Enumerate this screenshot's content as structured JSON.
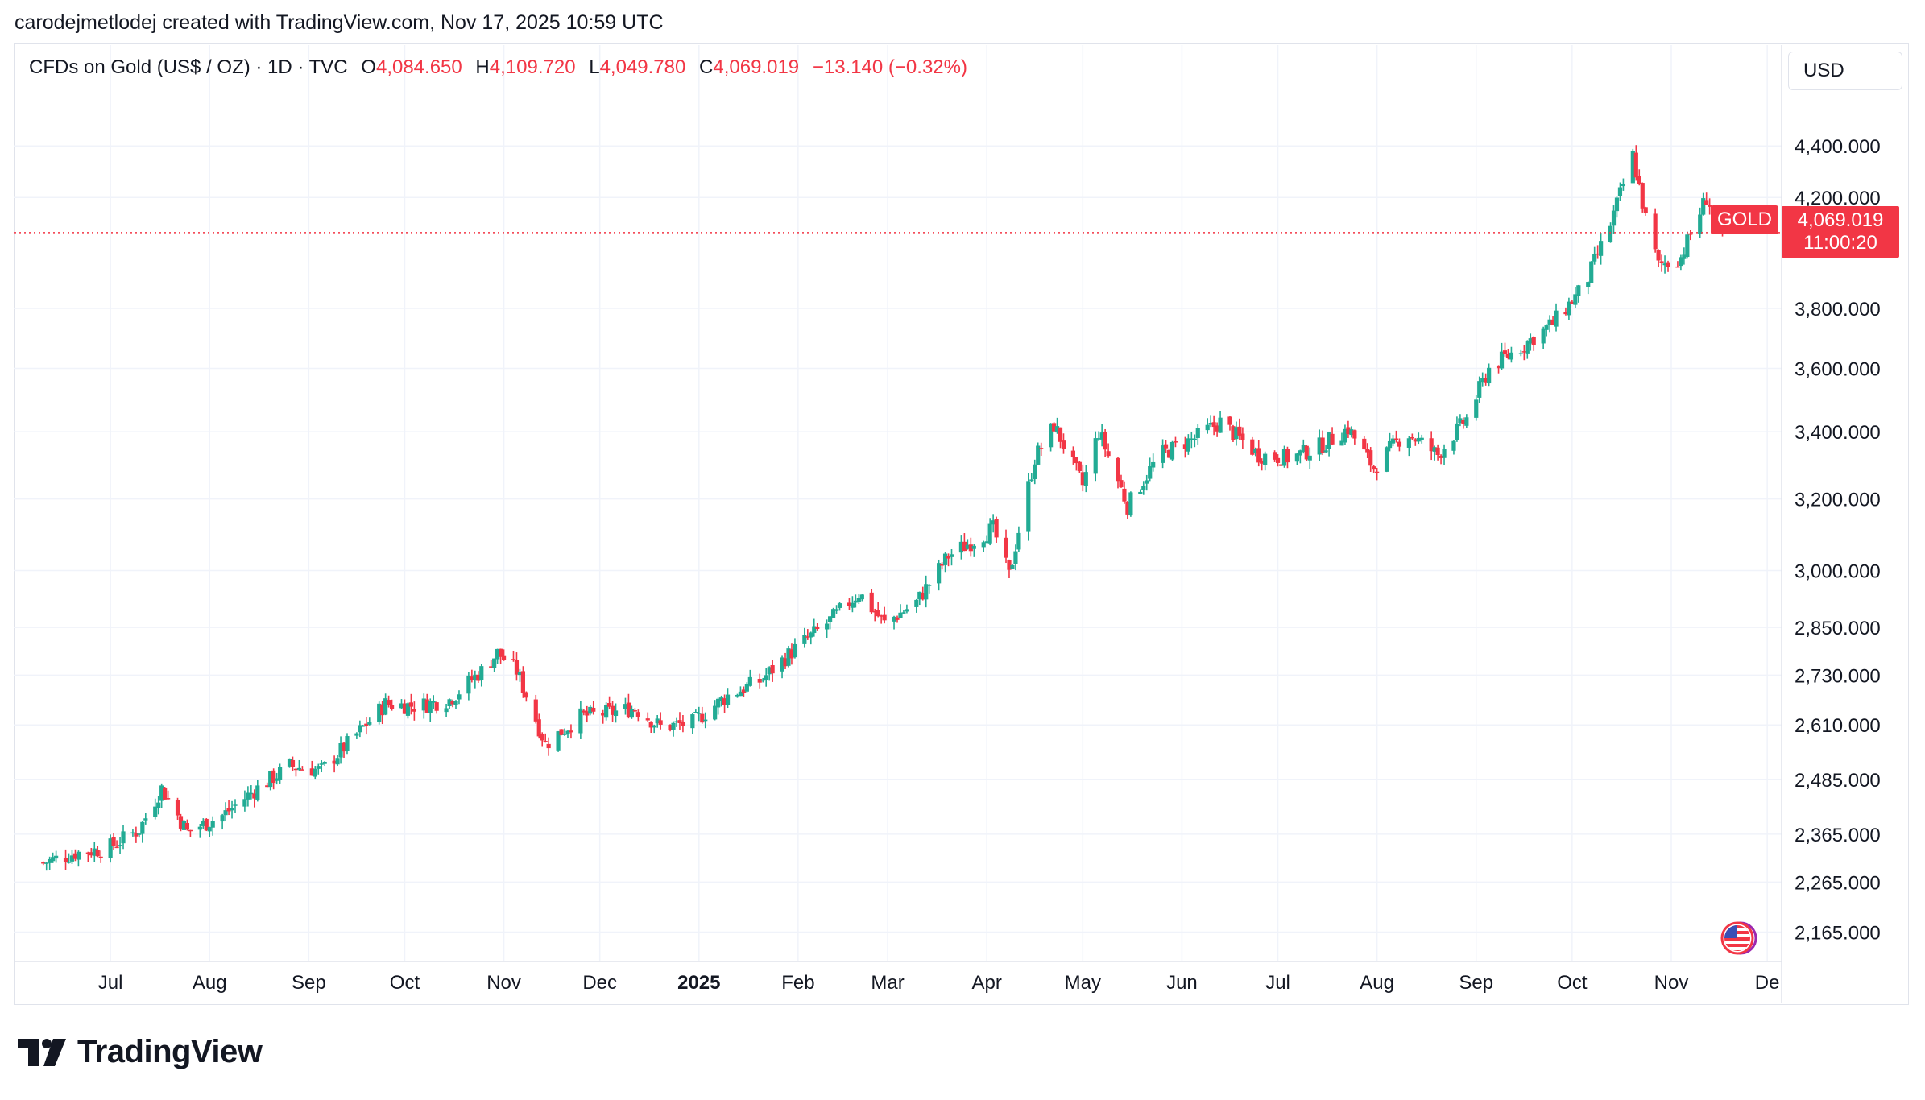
{
  "byline": "carodejmetlodej created with TradingView.com, Nov 17, 2025 10:59 UTC",
  "legend": {
    "symbol": "CFDs on Gold (US$ / OZ) · 1D · TVC",
    "open_label": "O",
    "open": "4,084.650",
    "high_label": "H",
    "high": "4,109.720",
    "low_label": "L",
    "low": "4,049.780",
    "close_label": "C",
    "close": "4,069.019",
    "change": "−13.140 (−0.32%)"
  },
  "currency": "USD",
  "price_tag": {
    "name": "GOLD",
    "price": "4,069.019",
    "countdown": "11:00:20"
  },
  "logo": {
    "text": "TradingView"
  },
  "colors": {
    "up": "#22ab94",
    "down": "#f23645",
    "grid": "#f0f3fa",
    "text": "#131722"
  },
  "icons": {
    "flag": "us-flag-icon",
    "logo": "tradingview-logo-icon"
  },
  "chart_data": {
    "type": "candlestick",
    "scale": "log",
    "ylim": [
      2130,
      4600
    ],
    "x_range": [
      "2024-06-01",
      "2025-12-05"
    ],
    "y_ticks": [
      "4,400.000",
      "4,200.000",
      "3,800.000",
      "3,600.000",
      "3,400.000",
      "3,200.000",
      "3,000.000",
      "2,850.000",
      "2,730.000",
      "2,610.000",
      "2,485.000",
      "2,365.000",
      "2,265.000",
      "2,165.000"
    ],
    "y_tick_values": [
      4400,
      4200,
      3800,
      3600,
      3400,
      3200,
      3000,
      2850,
      2730,
      2610,
      2485,
      2365,
      2265,
      2165
    ],
    "x_ticks": [
      {
        "label": "Jul",
        "date": "2024-07-01"
      },
      {
        "label": "Aug",
        "date": "2024-08-01"
      },
      {
        "label": "Sep",
        "date": "2024-09-01"
      },
      {
        "label": "Oct",
        "date": "2024-10-01"
      },
      {
        "label": "Nov",
        "date": "2024-11-01"
      },
      {
        "label": "Dec",
        "date": "2024-12-01"
      },
      {
        "label": "2025",
        "date": "2025-01-01",
        "bold": true
      },
      {
        "label": "Feb",
        "date": "2025-02-01"
      },
      {
        "label": "Mar",
        "date": "2025-03-01"
      },
      {
        "label": "Apr",
        "date": "2025-04-01"
      },
      {
        "label": "May",
        "date": "2025-05-01"
      },
      {
        "label": "Jun",
        "date": "2025-06-01"
      },
      {
        "label": "Jul",
        "date": "2025-07-01"
      },
      {
        "label": "Aug",
        "date": "2025-08-01"
      },
      {
        "label": "Sep",
        "date": "2025-09-01"
      },
      {
        "label": "Oct",
        "date": "2025-10-01"
      },
      {
        "label": "Nov",
        "date": "2025-11-01"
      },
      {
        "label": "De",
        "date": "2025-12-01"
      }
    ],
    "last_price": 4069.019,
    "close_series_dates": [
      "2024-06-10",
      "2024-06-20",
      "2024-06-30",
      "2024-07-10",
      "2024-07-17",
      "2024-07-25",
      "2024-08-05",
      "2024-08-15",
      "2024-08-26",
      "2024-09-05",
      "2024-09-15",
      "2024-09-25",
      "2024-10-05",
      "2024-10-15",
      "2024-10-25",
      "2024-10-30",
      "2024-11-05",
      "2024-11-14",
      "2024-11-25",
      "2024-12-05",
      "2024-12-12",
      "2024-12-20",
      "2024-12-30",
      "2025-01-10",
      "2025-01-20",
      "2025-01-31",
      "2025-02-10",
      "2025-02-20",
      "2025-02-28",
      "2025-03-10",
      "2025-03-20",
      "2025-04-03",
      "2025-04-08",
      "2025-04-16",
      "2025-04-22",
      "2025-05-01",
      "2025-05-06",
      "2025-05-15",
      "2025-05-25",
      "2025-06-05",
      "2025-06-13",
      "2025-06-25",
      "2025-07-05",
      "2025-07-15",
      "2025-07-23",
      "2025-07-31",
      "2025-08-10",
      "2025-08-20",
      "2025-08-29",
      "2025-09-05",
      "2025-09-15",
      "2025-09-25",
      "2025-10-05",
      "2025-10-13",
      "2025-10-20",
      "2025-10-24",
      "2025-10-28",
      "2025-11-04",
      "2025-11-12",
      "2025-11-17"
    ],
    "close_series_values": [
      2305,
      2325,
      2335,
      2375,
      2465,
      2370,
      2405,
      2460,
      2515,
      2505,
      2580,
      2660,
      2655,
      2670,
      2740,
      2785,
      2740,
      2565,
      2630,
      2640,
      2650,
      2605,
      2615,
      2680,
      2715,
      2795,
      2860,
      2940,
      2860,
      2915,
      3040,
      3115,
      2985,
      3320,
      3420,
      3240,
      3400,
      3180,
      3330,
      3380,
      3430,
      3330,
      3320,
      3360,
      3410,
      3290,
      3400,
      3330,
      3440,
      3600,
      3670,
      3750,
      3880,
      4100,
      4360,
      4120,
      3950,
      3980,
      4200,
      4069
    ]
  }
}
